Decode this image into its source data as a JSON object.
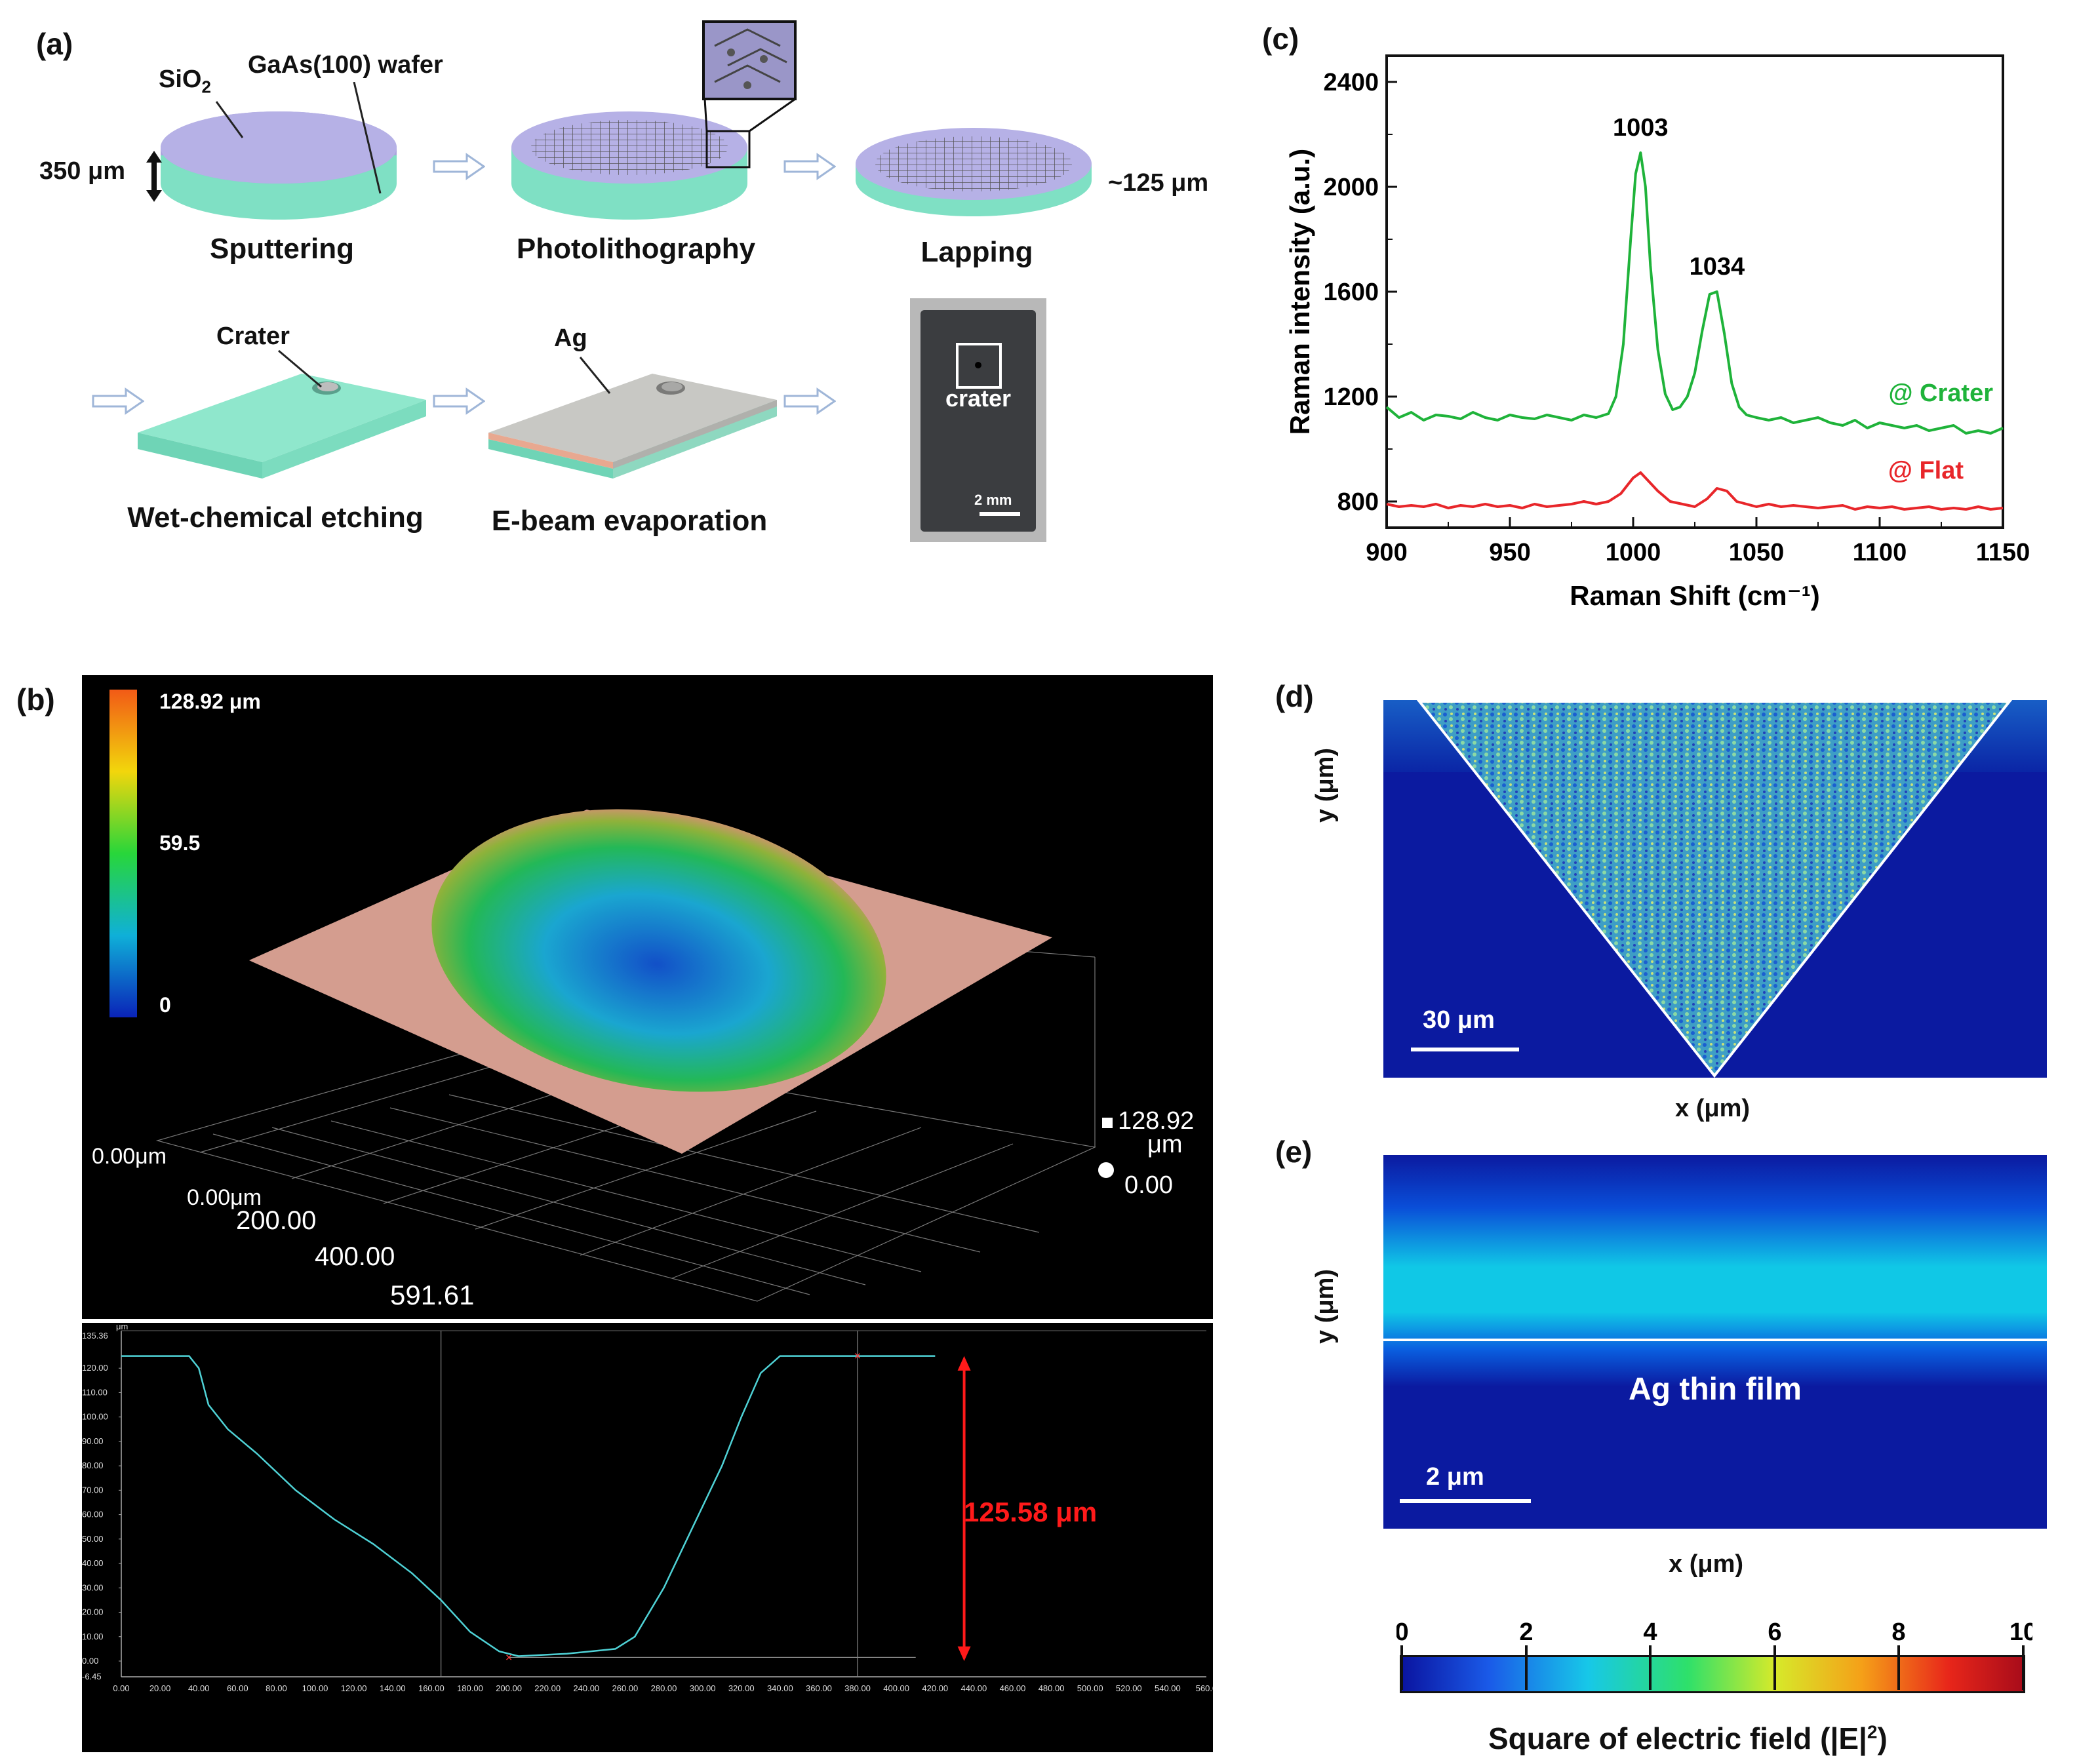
{
  "panels": {
    "a": {
      "label": "(a)",
      "labels": {
        "sio2": "SiO",
        "sio2_sub": "2",
        "wafer": "GaAs(100) wafer",
        "thickness": "350 μm",
        "thin_thickness": "~125 μm",
        "crater": "Crater",
        "ag": "Ag",
        "photo_crater": "crater",
        "photo_scale": "2 mm"
      },
      "steps": [
        "Sputtering",
        "Photolithography",
        "Lapping",
        "Wet-chemical etching",
        "E-beam evaporation"
      ]
    },
    "b": {
      "label": "(b)",
      "colorbar": {
        "max": "128.92 μm",
        "mid": "59.5",
        "min": "0"
      },
      "axes3d": {
        "x_origin": "0.00μm",
        "y_origin": "0.00μm",
        "tick_200": "200.00",
        "tick_400": "400.00",
        "tick_end": "591.61",
        "z_top": "128.92",
        "z_unit": "μm",
        "z_bottom": "0.00"
      },
      "profile": {
        "unit": "μm",
        "y_top": "135.36",
        "y_ticks": [
          "120.00",
          "110.00",
          "100.00",
          "90.00",
          "80.00",
          "70.00",
          "60.00",
          "50.00",
          "40.00",
          "30.00",
          "20.00",
          "10.00",
          "0.00"
        ],
        "y_bottom": "-6.45",
        "x_ticks": [
          "0.00",
          "20.00",
          "40.00",
          "60.00",
          "80.00",
          "100.00",
          "120.00",
          "140.00",
          "160.00",
          "180.00",
          "200.00",
          "220.00",
          "240.00",
          "260.00",
          "280.00",
          "300.00",
          "320.00",
          "340.00",
          "360.00",
          "380.00",
          "400.00",
          "420.00",
          "440.00",
          "460.00",
          "480.00",
          "500.00",
          "520.00",
          "540.00",
          "560.0"
        ],
        "depth_label": "125.58 μm",
        "depth_color": "#ff1a1a",
        "line_color": "#4fd2d6"
      }
    },
    "c": {
      "label": "(c)",
      "annotations": {
        "crater": "@ Crater",
        "flat": "@ Flat"
      },
      "colors": {
        "crater": "#1fb33a",
        "flat": "#e8262a"
      }
    },
    "d": {
      "label": "(d)",
      "ylabel": "y (μm)",
      "xlabel": "x (μm)",
      "scalebar": "30 μm"
    },
    "e": {
      "label": "(e)",
      "ylabel": "y (μm)",
      "xlabel": "x (μm)",
      "film": "Ag thin film",
      "scalebar": "2 μm"
    },
    "colorbar": {
      "ticks": [
        "0",
        "2",
        "4",
        "6",
        "8",
        "10"
      ],
      "title": "Square of electric field (|E|",
      "title_sup": "2",
      "title_end": ")"
    }
  },
  "chart_data": {
    "type": "line",
    "title": "",
    "xlabel": "Raman Shift (cm⁻¹)",
    "ylabel": "Raman intensity (a.u.)",
    "xlim": [
      900,
      1150
    ],
    "ylim": [
      700,
      2500
    ],
    "x_ticks": [
      900,
      950,
      1000,
      1050,
      1100,
      1150
    ],
    "y_ticks": [
      800,
      1200,
      1600,
      2000,
      2400
    ],
    "peak_labels": [
      {
        "x": 1003,
        "y": 2130,
        "text": "1003"
      },
      {
        "x": 1034,
        "y": 1600,
        "text": "1034"
      }
    ],
    "series": [
      {
        "name": "@ Crater",
        "x": [
          900,
          905,
          910,
          915,
          920,
          925,
          930,
          935,
          940,
          945,
          950,
          955,
          960,
          965,
          970,
          975,
          980,
          985,
          990,
          993,
          996,
          999,
          1001,
          1003,
          1005,
          1007,
          1010,
          1013,
          1016,
          1019,
          1022,
          1025,
          1028,
          1031,
          1034,
          1037,
          1040,
          1043,
          1046,
          1050,
          1055,
          1060,
          1065,
          1070,
          1075,
          1080,
          1085,
          1090,
          1095,
          1100,
          1105,
          1110,
          1115,
          1120,
          1125,
          1130,
          1135,
          1140,
          1145,
          1150
        ],
        "values": [
          1160,
          1120,
          1140,
          1110,
          1130,
          1125,
          1115,
          1140,
          1120,
          1110,
          1130,
          1120,
          1115,
          1130,
          1120,
          1110,
          1130,
          1120,
          1135,
          1200,
          1400,
          1800,
          2050,
          2130,
          2000,
          1700,
          1380,
          1210,
          1150,
          1160,
          1200,
          1290,
          1450,
          1590,
          1600,
          1440,
          1250,
          1160,
          1130,
          1120,
          1110,
          1120,
          1100,
          1110,
          1120,
          1100,
          1090,
          1110,
          1080,
          1100,
          1090,
          1080,
          1090,
          1070,
          1080,
          1090,
          1060,
          1070,
          1060,
          1080
        ]
      },
      {
        "name": "@ Flat",
        "x": [
          900,
          905,
          910,
          915,
          920,
          925,
          930,
          935,
          940,
          945,
          950,
          955,
          960,
          965,
          970,
          975,
          980,
          985,
          990,
          995,
          1000,
          1003,
          1006,
          1010,
          1015,
          1020,
          1025,
          1030,
          1034,
          1038,
          1042,
          1046,
          1050,
          1055,
          1060,
          1065,
          1070,
          1075,
          1080,
          1085,
          1090,
          1095,
          1100,
          1105,
          1110,
          1115,
          1120,
          1125,
          1130,
          1135,
          1140,
          1145,
          1150
        ],
        "values": [
          790,
          780,
          785,
          780,
          790,
          775,
          785,
          780,
          790,
          780,
          785,
          775,
          790,
          780,
          785,
          790,
          800,
          790,
          800,
          830,
          890,
          910,
          880,
          840,
          800,
          790,
          780,
          810,
          850,
          840,
          800,
          790,
          780,
          790,
          780,
          785,
          780,
          775,
          780,
          785,
          770,
          780,
          775,
          780,
          770,
          775,
          780,
          770,
          775,
          770,
          780,
          770,
          775
        ]
      }
    ]
  }
}
